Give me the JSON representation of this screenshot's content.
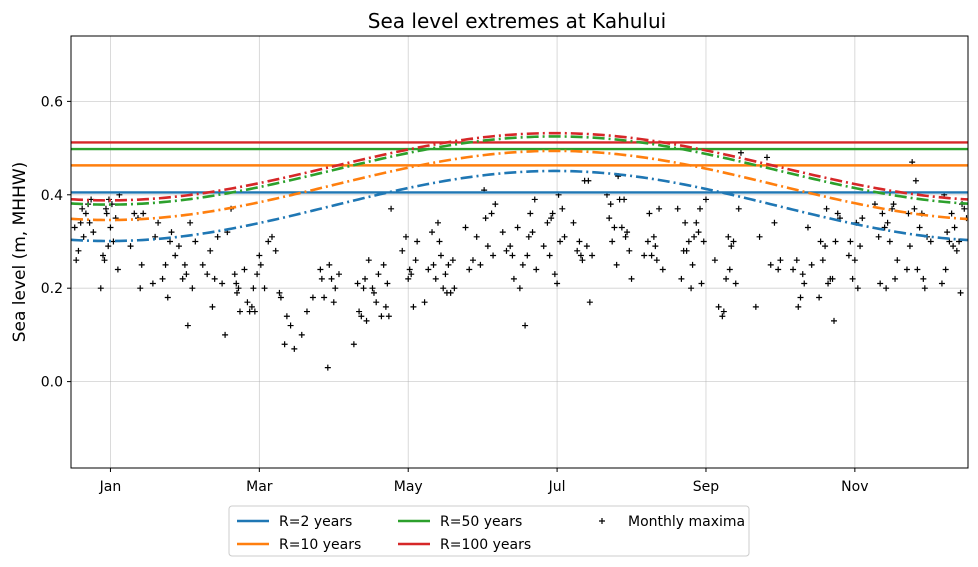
{
  "chart_data": {
    "type": "line",
    "title": "Sea level extremes at Kahului",
    "xlabel": "",
    "ylabel": "Sea level (m, MHHW)",
    "xlim": [
      -0.35,
      11.7
    ],
    "ylim": [
      -0.185,
      0.74
    ],
    "x_tick_values": [
      0.18,
      2.18,
      4.18,
      6.18,
      8.18,
      10.18
    ],
    "x_tick_labels": [
      "Jan",
      "Mar",
      "May",
      "Jul",
      "Sep",
      "Nov"
    ],
    "y_tick_values": [
      0.0,
      0.2,
      0.4,
      0.6
    ],
    "y_tick_labels": [
      "0.0",
      "0.2",
      "0.4",
      "0.6"
    ],
    "grid": true,
    "legend_position": "bottom-center, outside plot",
    "series": [
      {
        "name": "R=2 years",
        "color": "#1f77b4",
        "stationary_level": 0.405,
        "seasonal_mean": 0.376,
        "seasonal_amplitude": 0.075,
        "peak_month": 6.15
      },
      {
        "name": "R=10 years",
        "color": "#ff7f0e",
        "stationary_level": 0.463,
        "seasonal_mean": 0.42,
        "seasonal_amplitude": 0.074,
        "peak_month": 6.15
      },
      {
        "name": "R=50 years",
        "color": "#2ca02c",
        "stationary_level": 0.498,
        "seasonal_mean": 0.452,
        "seasonal_amplitude": 0.073,
        "peak_month": 6.15
      },
      {
        "name": "R=100 years",
        "color": "#d62728",
        "stationary_level": 0.512,
        "seasonal_mean": 0.46,
        "seasonal_amplitude": 0.072,
        "peak_month": 6.15
      }
    ],
    "scatter": {
      "name": "Monthly maxima",
      "color": "#000000",
      "points": [
        [
          -0.3,
          0.33
        ],
        [
          -0.28,
          0.26
        ],
        [
          -0.25,
          0.28
        ],
        [
          -0.22,
          0.34
        ],
        [
          -0.2,
          0.37
        ],
        [
          -0.18,
          0.31
        ],
        [
          -0.15,
          0.36
        ],
        [
          -0.12,
          0.38
        ],
        [
          -0.1,
          0.34
        ],
        [
          -0.08,
          0.39
        ],
        [
          -0.05,
          0.32
        ],
        [
          0.05,
          0.2
        ],
        [
          0.08,
          0.27
        ],
        [
          0.1,
          0.26
        ],
        [
          0.12,
          0.37
        ],
        [
          0.13,
          0.36
        ],
        [
          0.15,
          0.29
        ],
        [
          0.16,
          0.39
        ],
        [
          0.18,
          0.33
        ],
        [
          0.2,
          0.38
        ],
        [
          0.22,
          0.3
        ],
        [
          0.25,
          0.35
        ],
        [
          0.28,
          0.24
        ],
        [
          0.3,
          0.4
        ],
        [
          0.45,
          0.29
        ],
        [
          0.5,
          0.36
        ],
        [
          0.55,
          0.35
        ],
        [
          0.58,
          0.2
        ],
        [
          0.6,
          0.25
        ],
        [
          0.62,
          0.36
        ],
        [
          0.75,
          0.21
        ],
        [
          0.78,
          0.31
        ],
        [
          0.82,
          0.34
        ],
        [
          0.88,
          0.22
        ],
        [
          0.92,
          0.25
        ],
        [
          0.95,
          0.18
        ],
        [
          0.98,
          0.3
        ],
        [
          1.0,
          0.32
        ],
        [
          1.05,
          0.27
        ],
        [
          1.1,
          0.29
        ],
        [
          1.15,
          0.22
        ],
        [
          1.18,
          0.25
        ],
        [
          1.2,
          0.23
        ],
        [
          1.22,
          0.12
        ],
        [
          1.25,
          0.34
        ],
        [
          1.28,
          0.2
        ],
        [
          1.32,
          0.3
        ],
        [
          1.42,
          0.25
        ],
        [
          1.48,
          0.23
        ],
        [
          1.52,
          0.28
        ],
        [
          1.55,
          0.16
        ],
        [
          1.58,
          0.22
        ],
        [
          1.62,
          0.31
        ],
        [
          1.68,
          0.21
        ],
        [
          1.72,
          0.1
        ],
        [
          1.75,
          0.32
        ],
        [
          1.8,
          0.37
        ],
        [
          1.85,
          0.23
        ],
        [
          1.87,
          0.21
        ],
        [
          1.88,
          0.19
        ],
        [
          1.9,
          0.2
        ],
        [
          1.92,
          0.15
        ],
        [
          1.98,
          0.24
        ],
        [
          2.02,
          0.17
        ],
        [
          2.05,
          0.15
        ],
        [
          2.08,
          0.16
        ],
        [
          2.1,
          0.2
        ],
        [
          2.12,
          0.15
        ],
        [
          2.15,
          0.23
        ],
        [
          2.18,
          0.27
        ],
        [
          2.2,
          0.25
        ],
        [
          2.25,
          0.2
        ],
        [
          2.3,
          0.3
        ],
        [
          2.35,
          0.31
        ],
        [
          2.4,
          0.28
        ],
        [
          2.45,
          0.19
        ],
        [
          2.47,
          0.18
        ],
        [
          2.52,
          0.08
        ],
        [
          2.55,
          0.14
        ],
        [
          2.6,
          0.12
        ],
        [
          2.65,
          0.07
        ],
        [
          2.75,
          0.1
        ],
        [
          2.82,
          0.15
        ],
        [
          2.9,
          0.18
        ],
        [
          3.0,
          0.24
        ],
        [
          3.02,
          0.22
        ],
        [
          3.05,
          0.18
        ],
        [
          3.1,
          0.03
        ],
        [
          3.12,
          0.25
        ],
        [
          3.15,
          0.22
        ],
        [
          3.18,
          0.17
        ],
        [
          3.2,
          0.2
        ],
        [
          3.25,
          0.23
        ],
        [
          3.45,
          0.08
        ],
        [
          3.5,
          0.21
        ],
        [
          3.52,
          0.15
        ],
        [
          3.55,
          0.14
        ],
        [
          3.58,
          0.2
        ],
        [
          3.6,
          0.22
        ],
        [
          3.62,
          0.13
        ],
        [
          3.65,
          0.26
        ],
        [
          3.7,
          0.2
        ],
        [
          3.72,
          0.19
        ],
        [
          3.75,
          0.17
        ],
        [
          3.78,
          0.23
        ],
        [
          3.82,
          0.14
        ],
        [
          3.85,
          0.25
        ],
        [
          3.88,
          0.16
        ],
        [
          3.9,
          0.21
        ],
        [
          3.92,
          0.14
        ],
        [
          3.95,
          0.37
        ],
        [
          4.1,
          0.28
        ],
        [
          4.15,
          0.31
        ],
        [
          4.18,
          0.22
        ],
        [
          4.2,
          0.24
        ],
        [
          4.22,
          0.23
        ],
        [
          4.25,
          0.16
        ],
        [
          4.28,
          0.26
        ],
        [
          4.3,
          0.3
        ],
        [
          4.4,
          0.17
        ],
        [
          4.45,
          0.24
        ],
        [
          4.5,
          0.32
        ],
        [
          4.52,
          0.25
        ],
        [
          4.55,
          0.22
        ],
        [
          4.58,
          0.34
        ],
        [
          4.6,
          0.3
        ],
        [
          4.62,
          0.27
        ],
        [
          4.65,
          0.2
        ],
        [
          4.68,
          0.23
        ],
        [
          4.7,
          0.19
        ],
        [
          4.72,
          0.25
        ],
        [
          4.75,
          0.19
        ],
        [
          4.78,
          0.26
        ],
        [
          4.8,
          0.2
        ],
        [
          4.95,
          0.33
        ],
        [
          5.0,
          0.24
        ],
        [
          5.05,
          0.26
        ],
        [
          5.1,
          0.31
        ],
        [
          5.15,
          0.25
        ],
        [
          5.2,
          0.41
        ],
        [
          5.22,
          0.35
        ],
        [
          5.25,
          0.29
        ],
        [
          5.3,
          0.36
        ],
        [
          5.32,
          0.27
        ],
        [
          5.35,
          0.38
        ],
        [
          5.45,
          0.32
        ],
        [
          5.5,
          0.28
        ],
        [
          5.55,
          0.29
        ],
        [
          5.58,
          0.27
        ],
        [
          5.6,
          0.22
        ],
        [
          5.65,
          0.33
        ],
        [
          5.68,
          0.2
        ],
        [
          5.72,
          0.25
        ],
        [
          5.75,
          0.12
        ],
        [
          5.78,
          0.27
        ],
        [
          5.8,
          0.31
        ],
        [
          5.82,
          0.36
        ],
        [
          5.85,
          0.32
        ],
        [
          5.88,
          0.39
        ],
        [
          5.9,
          0.24
        ],
        [
          6.0,
          0.29
        ],
        [
          6.05,
          0.34
        ],
        [
          6.08,
          0.27
        ],
        [
          6.1,
          0.35
        ],
        [
          6.12,
          0.36
        ],
        [
          6.15,
          0.23
        ],
        [
          6.18,
          0.21
        ],
        [
          6.2,
          0.4
        ],
        [
          6.22,
          0.3
        ],
        [
          6.25,
          0.37
        ],
        [
          6.28,
          0.31
        ],
        [
          6.4,
          0.34
        ],
        [
          6.45,
          0.28
        ],
        [
          6.48,
          0.3
        ],
        [
          6.5,
          0.27
        ],
        [
          6.52,
          0.26
        ],
        [
          6.55,
          0.43
        ],
        [
          6.58,
          0.29
        ],
        [
          6.6,
          0.43
        ],
        [
          6.62,
          0.17
        ],
        [
          6.65,
          0.27
        ],
        [
          6.85,
          0.4
        ],
        [
          6.88,
          0.35
        ],
        [
          6.9,
          0.38
        ],
        [
          6.92,
          0.3
        ],
        [
          6.95,
          0.33
        ],
        [
          6.98,
          0.25
        ],
        [
          7.0,
          0.44
        ],
        [
          7.02,
          0.39
        ],
        [
          7.05,
          0.33
        ],
        [
          7.08,
          0.39
        ],
        [
          7.1,
          0.31
        ],
        [
          7.12,
          0.32
        ],
        [
          7.15,
          0.28
        ],
        [
          7.18,
          0.22
        ],
        [
          7.35,
          0.27
        ],
        [
          7.4,
          0.3
        ],
        [
          7.42,
          0.36
        ],
        [
          7.45,
          0.27
        ],
        [
          7.48,
          0.31
        ],
        [
          7.5,
          0.29
        ],
        [
          7.52,
          0.26
        ],
        [
          7.55,
          0.37
        ],
        [
          7.6,
          0.24
        ],
        [
          7.8,
          0.37
        ],
        [
          7.85,
          0.22
        ],
        [
          7.88,
          0.28
        ],
        [
          7.9,
          0.34
        ],
        [
          7.92,
          0.28
        ],
        [
          7.95,
          0.3
        ],
        [
          7.98,
          0.2
        ],
        [
          8.0,
          0.25
        ],
        [
          8.02,
          0.31
        ],
        [
          8.05,
          0.34
        ],
        [
          8.08,
          0.32
        ],
        [
          8.1,
          0.37
        ],
        [
          8.12,
          0.21
        ],
        [
          8.15,
          0.3
        ],
        [
          8.18,
          0.39
        ],
        [
          8.3,
          0.26
        ],
        [
          8.35,
          0.16
        ],
        [
          8.4,
          0.14
        ],
        [
          8.42,
          0.15
        ],
        [
          8.45,
          0.22
        ],
        [
          8.48,
          0.31
        ],
        [
          8.5,
          0.24
        ],
        [
          8.52,
          0.29
        ],
        [
          8.55,
          0.3
        ],
        [
          8.58,
          0.21
        ],
        [
          8.62,
          0.37
        ],
        [
          8.65,
          0.49
        ],
        [
          8.85,
          0.16
        ],
        [
          8.9,
          0.31
        ],
        [
          9.0,
          0.48
        ],
        [
          9.05,
          0.25
        ],
        [
          9.1,
          0.34
        ],
        [
          9.15,
          0.24
        ],
        [
          9.18,
          0.26
        ],
        [
          9.35,
          0.24
        ],
        [
          9.4,
          0.26
        ],
        [
          9.42,
          0.16
        ],
        [
          9.45,
          0.18
        ],
        [
          9.48,
          0.23
        ],
        [
          9.5,
          0.21
        ],
        [
          9.55,
          0.33
        ],
        [
          9.6,
          0.25
        ],
        [
          9.7,
          0.18
        ],
        [
          9.72,
          0.3
        ],
        [
          9.75,
          0.26
        ],
        [
          9.78,
          0.29
        ],
        [
          9.8,
          0.37
        ],
        [
          9.82,
          0.21
        ],
        [
          9.85,
          0.22
        ],
        [
          9.88,
          0.22
        ],
        [
          9.9,
          0.13
        ],
        [
          9.92,
          0.3
        ],
        [
          9.95,
          0.36
        ],
        [
          9.98,
          0.35
        ],
        [
          10.1,
          0.27
        ],
        [
          10.12,
          0.3
        ],
        [
          10.15,
          0.22
        ],
        [
          10.18,
          0.26
        ],
        [
          10.2,
          0.34
        ],
        [
          10.22,
          0.2
        ],
        [
          10.25,
          0.29
        ],
        [
          10.28,
          0.35
        ],
        [
          10.45,
          0.38
        ],
        [
          10.5,
          0.31
        ],
        [
          10.52,
          0.21
        ],
        [
          10.55,
          0.36
        ],
        [
          10.58,
          0.33
        ],
        [
          10.6,
          0.2
        ],
        [
          10.62,
          0.34
        ],
        [
          10.65,
          0.3
        ],
        [
          10.68,
          0.37
        ],
        [
          10.7,
          0.38
        ],
        [
          10.72,
          0.22
        ],
        [
          10.75,
          0.26
        ],
        [
          10.88,
          0.24
        ],
        [
          10.9,
          0.36
        ],
        [
          10.92,
          0.29
        ],
        [
          10.95,
          0.47
        ],
        [
          10.98,
          0.37
        ],
        [
          11.0,
          0.43
        ],
        [
          11.02,
          0.24
        ],
        [
          11.05,
          0.33
        ],
        [
          11.08,
          0.36
        ],
        [
          11.1,
          0.22
        ],
        [
          11.12,
          0.2
        ],
        [
          11.15,
          0.31
        ],
        [
          11.2,
          0.3
        ],
        [
          11.35,
          0.21
        ],
        [
          11.38,
          0.4
        ],
        [
          11.4,
          0.24
        ],
        [
          11.42,
          0.32
        ],
        [
          11.45,
          0.3
        ],
        [
          11.48,
          0.36
        ],
        [
          11.5,
          0.29
        ],
        [
          11.52,
          0.33
        ],
        [
          11.55,
          0.28
        ],
        [
          11.58,
          0.3
        ],
        [
          11.6,
          0.19
        ],
        [
          11.62,
          0.38
        ],
        [
          11.65,
          0.37
        ],
        [
          11.68,
          0.35
        ]
      ]
    }
  }
}
